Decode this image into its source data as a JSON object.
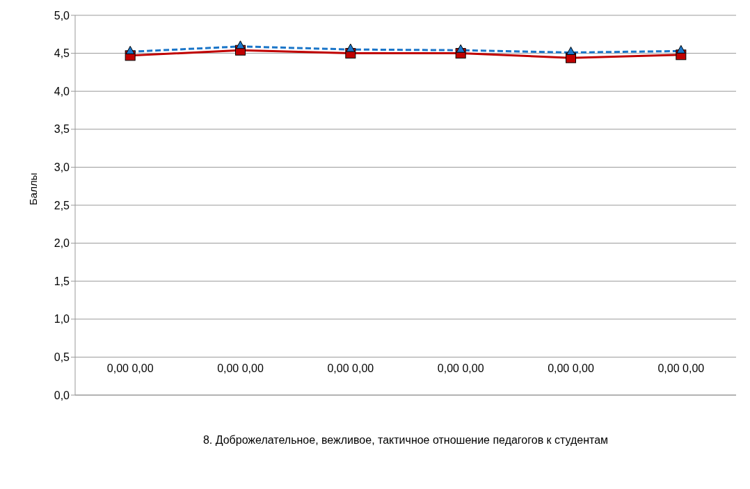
{
  "chart_data": {
    "type": "line",
    "ylabel": "Баллы",
    "xlabel": "8. Доброжелательное, вежливое, тактичное отношение педагогов к студентам",
    "categories": [
      null,
      null,
      null,
      null,
      null,
      null
    ],
    "series": [
      {
        "color": "#1a75c8",
        "values": [
          4.52,
          4.59,
          4.55,
          4.54,
          4.51,
          4.53
        ],
        "marker": "triangle",
        "line_style": "dashed"
      },
      {
        "color": "#c00000",
        "values": [
          4.47,
          4.54,
          4.5,
          4.5,
          4.44,
          4.48
        ],
        "marker": "square",
        "line_style": "solid"
      }
    ],
    "annotations": [
      "0,00 0,00",
      "0,00 0,00",
      "0,00 0,00",
      "0,00 0,00",
      "0,00 0,00",
      "0,00 0,00"
    ],
    "ylim": [
      0,
      5
    ],
    "yticks": [
      {
        "value": 0,
        "label": "0,0"
      },
      {
        "value": 0.5,
        "label": "0,5"
      },
      {
        "value": 1,
        "label": "1,0"
      },
      {
        "value": 1.5,
        "label": "1,5"
      },
      {
        "value": 2,
        "label": "2,0"
      },
      {
        "value": 2.5,
        "label": "2,5"
      },
      {
        "value": 3,
        "label": "3,0"
      },
      {
        "value": 3.5,
        "label": "3,5"
      },
      {
        "value": 4,
        "label": "4,0"
      },
      {
        "value": 4.5,
        "label": "4,5"
      },
      {
        "value": 5,
        "label": "5,0"
      }
    ],
    "grid": "y",
    "legend": false
  }
}
